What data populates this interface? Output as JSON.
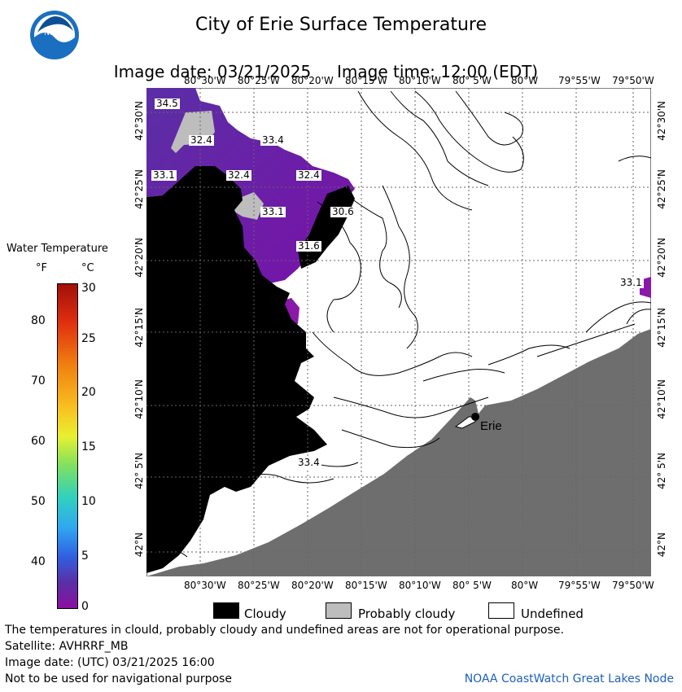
{
  "header": {
    "title": "City of Erie Surface Temperature",
    "image_date_label": "Image date: 03/21/2025",
    "image_time_label": "Image time: 12:00 (EDT)"
  },
  "map": {
    "lon_ticks": [
      "80°30'W",
      "80°25'W",
      "80°20'W",
      "80°15'W",
      "80°10'W",
      "80° 5'W",
      "80°W",
      "79°55'W",
      "79°50'W"
    ],
    "lat_ticks": [
      "42°30'N",
      "42°25'N",
      "42°20'N",
      "42°15'N",
      "42°10'N",
      "42° 5'N",
      "42°N"
    ],
    "city_label": "Erie",
    "temperature_labels": [
      "34.5",
      "32.4",
      "33.4",
      "33.1",
      "32.4",
      "32.4",
      "33.1",
      "30.6",
      "31.6",
      "33.1",
      "33.4"
    ],
    "colors": {
      "cloudy": "#000000",
      "probably_cloudy": "#bdbdbd",
      "undefined": "#ffffff",
      "land": "#6e6e6e",
      "water_cold": "#6a0f9e"
    }
  },
  "scale": {
    "title": "Water Temperature",
    "unit_f": "°F",
    "unit_c": "°C",
    "fahrenheit_ticks": [
      "80",
      "70",
      "60",
      "50",
      "40"
    ],
    "celsius_ticks": [
      "30",
      "25",
      "20",
      "15",
      "10",
      "5",
      "0"
    ]
  },
  "legend": {
    "cloudy": "Cloudy",
    "probably_cloudy": "Probably cloudy",
    "undefined": "Undefined"
  },
  "footer": {
    "disclaimer": "The temperatures in clould, probably cloudy and undefined areas are not for operational purpose.",
    "satellite": "Satellite: AVHRRF_MB",
    "utc_date": "Image date: (UTC) 03/21/2025  16:00",
    "nav_warning": "Not to be used for navigational purpose",
    "credit": "NOAA CoastWatch Great Lakes Node"
  }
}
